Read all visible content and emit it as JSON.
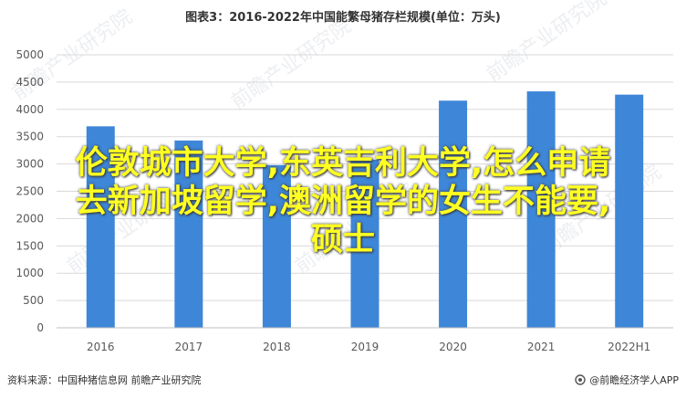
{
  "chart_data": {
    "type": "bar",
    "title": "图表3：2016-2022年中国能繁母猪存栏规模(单位：万头)",
    "categories": [
      "2016",
      "2017",
      "2018",
      "2019",
      "2020",
      "2021",
      "2022H1"
    ],
    "values": [
      3690,
      3430,
      2980,
      3080,
      4160,
      4330,
      4270
    ],
    "ylim": [
      0,
      5000
    ],
    "yticks": [
      0,
      500,
      1000,
      1500,
      2000,
      2500,
      3000,
      3500,
      4000,
      4500,
      5000
    ],
    "grid": true,
    "bar_color": "#3e86d7"
  },
  "source_text": "资料来源：中国种猪信息网 前瞻产业研究院",
  "brand_text": "@前瞻经济学人APP",
  "overlay_lines": [
    "伦敦城市大学,东英吉利大学,怎么申请",
    "去新加坡留学,澳洲留学的女生不能要,",
    "硕士"
  ],
  "overlay_color": "#ffff22",
  "watermark_text": "前瞻产业研究院"
}
